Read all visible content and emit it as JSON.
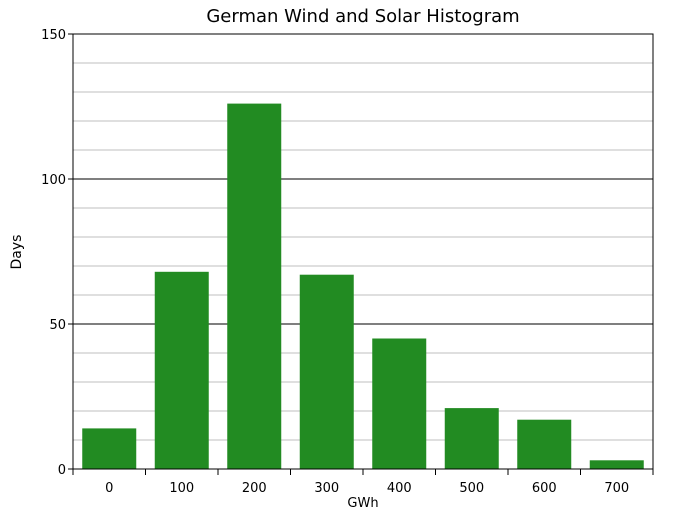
{
  "chart_data": {
    "type": "bar",
    "title": "German Wind and Solar Histogram",
    "xlabel": "GWh",
    "ylabel": "Days",
    "categories": [
      "0",
      "100",
      "200",
      "300",
      "400",
      "500",
      "600",
      "700"
    ],
    "values": [
      14,
      68,
      126,
      67,
      45,
      21,
      17,
      3
    ],
    "ylim": [
      0,
      150
    ],
    "yticks": [
      "0",
      "50",
      "100",
      "150"
    ],
    "grid": {
      "minor_step": 10,
      "major_step": 50
    },
    "bar_color": "#228b22",
    "legend": "none"
  }
}
